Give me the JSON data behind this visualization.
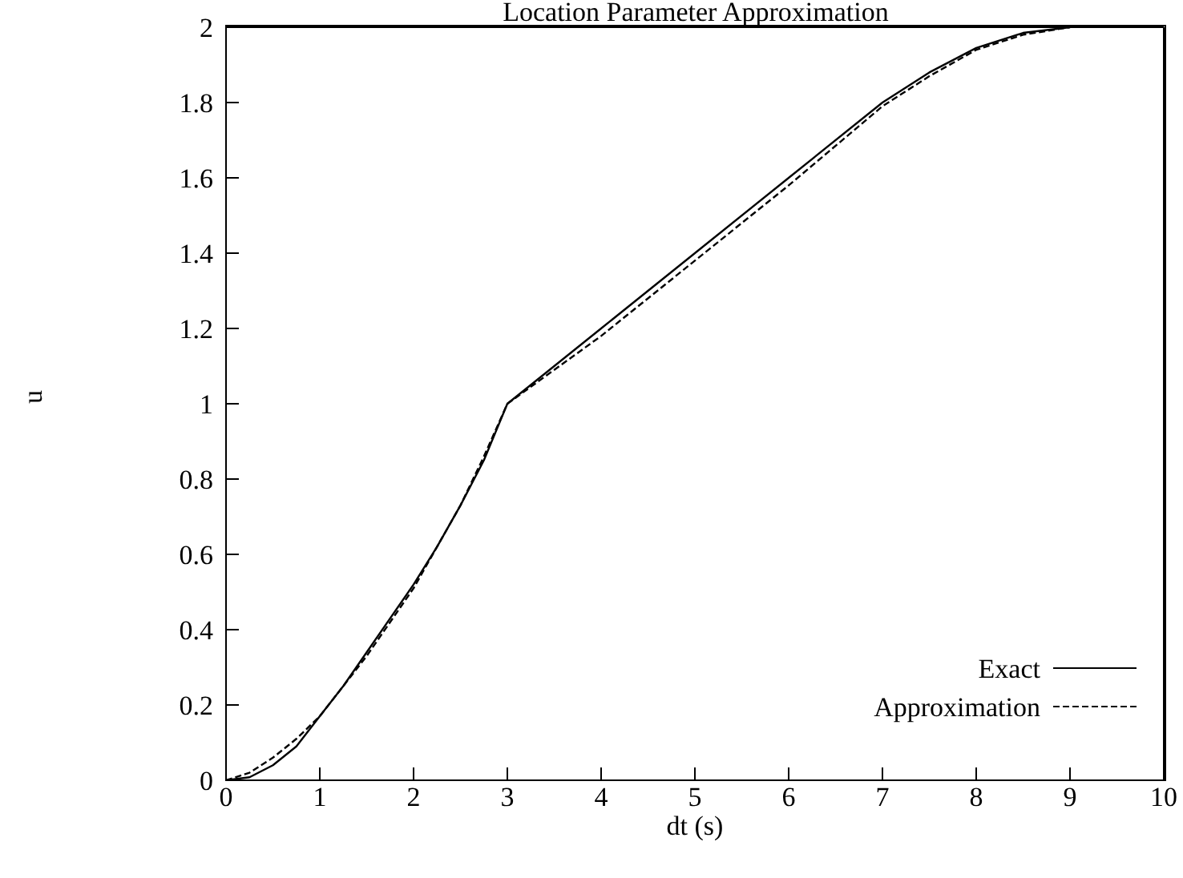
{
  "chart_data": {
    "type": "line",
    "title": "Location Parameter Approximation",
    "xlabel": "dt (s)",
    "ylabel": "u",
    "xlim": [
      0,
      10
    ],
    "xticks": [
      0,
      1,
      2,
      3,
      4,
      5,
      6,
      7,
      8,
      9,
      10
    ],
    "ylim": [
      0,
      2
    ],
    "yticks": [
      0,
      0.2,
      0.4,
      0.6,
      0.8,
      1,
      1.2,
      1.4,
      1.6,
      1.8,
      2
    ],
    "legend": "bottom right",
    "marker": "none",
    "series": [
      {
        "name": "Exact",
        "color": "#000000",
        "line_style": "solid",
        "x": [
          0,
          0.25,
          0.5,
          0.75,
          1,
          1.25,
          1.5,
          1.75,
          2,
          2.25,
          2.5,
          2.75,
          3,
          3.5,
          4,
          5,
          6,
          7,
          7.5,
          8,
          8.5,
          9
        ],
        "values": [
          0,
          0.008,
          0.04,
          0.09,
          0.17,
          0.25,
          0.34,
          0.43,
          0.52,
          0.62,
          0.73,
          0.85,
          1,
          1.1,
          1.2,
          1.4,
          1.6,
          1.8,
          1.88,
          1.945,
          1.985,
          2
        ]
      },
      {
        "name": "Approximation",
        "color": "#000000",
        "line_style": "dashed",
        "x": [
          0,
          0.25,
          0.5,
          0.75,
          1,
          1.5,
          2,
          2.5,
          2.75,
          3,
          3.5,
          4,
          5,
          6,
          7,
          7.5,
          8,
          8.5,
          9
        ],
        "values": [
          0,
          0.02,
          0.06,
          0.11,
          0.17,
          0.33,
          0.51,
          0.73,
          0.86,
          1,
          1.09,
          1.18,
          1.38,
          1.58,
          1.79,
          1.87,
          1.94,
          1.98,
          2
        ]
      }
    ]
  }
}
